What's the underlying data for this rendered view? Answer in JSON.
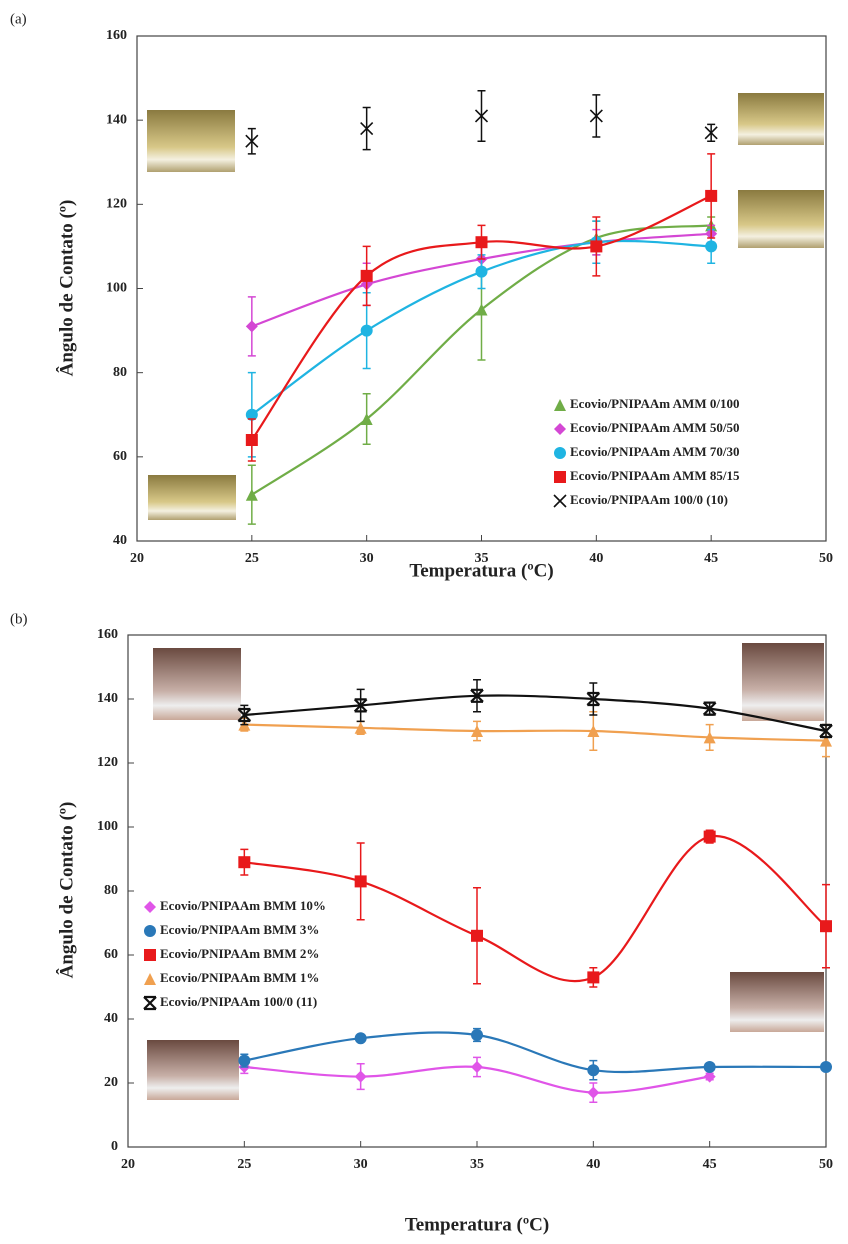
{
  "chart_data": [
    {
      "type": "line",
      "label": "(a)",
      "x_label": "Temperatura (ºC)",
      "y_label": "Ângulo de Contato (º)",
      "x": [
        25,
        30,
        35,
        40,
        45
      ],
      "xlim": [
        20,
        50
      ],
      "xticks": [
        20,
        25,
        30,
        35,
        40,
        45,
        50
      ],
      "ylim": [
        40,
        160
      ],
      "yticks": [
        40,
        60,
        80,
        100,
        120,
        140,
        160
      ],
      "series": [
        {
          "name": "Ecovio/PNIPAAm AMM 0/100",
          "color": "#70ad47",
          "marker": "triangle",
          "values": [
            51,
            69,
            95,
            112,
            115
          ],
          "errors": [
            7,
            6,
            12,
            4,
            2
          ]
        },
        {
          "name": "Ecovio/PNIPAAm AMM 50/50",
          "color": "#d447d4",
          "marker": "diamond",
          "values": [
            91,
            101,
            107,
            111,
            113
          ],
          "errors": [
            7,
            5,
            3,
            3,
            2
          ]
        },
        {
          "name": "Ecovio/PNIPAAm AMM 70/30",
          "color": "#1fb4e2",
          "marker": "circle",
          "values": [
            70,
            90,
            104,
            111,
            110
          ],
          "errors": [
            10,
            9,
            4,
            5,
            4
          ]
        },
        {
          "name": "Ecovio/PNIPAAm AMM 85/15",
          "color": "#e8191b",
          "marker": "square",
          "values": [
            64,
            103,
            111,
            110,
            122
          ],
          "errors": [
            5,
            7,
            4,
            7,
            10
          ]
        },
        {
          "name": "Ecovio/PNIPAAm 100/0 (10)",
          "color": "#111111",
          "marker": "x",
          "line": false,
          "values": [
            135,
            138,
            141,
            141,
            137
          ],
          "errors": [
            3,
            5,
            6,
            5,
            2
          ]
        }
      ]
    },
    {
      "type": "line",
      "label": "(b)",
      "x_label": "Temperatura (ºC)",
      "y_label": "Ângulo de Contato (º)",
      "x": [
        25,
        30,
        35,
        40,
        45,
        50
      ],
      "xlim": [
        20,
        50
      ],
      "xticks": [
        20,
        25,
        30,
        35,
        40,
        45,
        50
      ],
      "ylim": [
        0,
        160
      ],
      "yticks": [
        0,
        20,
        40,
        60,
        80,
        100,
        120,
        140,
        160
      ],
      "series": [
        {
          "name": "Ecovio/PNIPAAm BMM 10%",
          "color": "#e055e8",
          "marker": "diamond",
          "values": [
            25,
            22,
            25,
            17,
            22,
            null
          ],
          "errors": [
            2,
            4,
            3,
            3,
            1,
            null
          ]
        },
        {
          "name": "Ecovio/PNIPAAm BMM 3%",
          "color": "#2a78b8",
          "marker": "circle",
          "values": [
            27,
            34,
            35,
            24,
            25,
            25
          ],
          "errors": [
            2,
            1,
            2,
            3,
            1,
            1
          ]
        },
        {
          "name": "Ecovio/PNIPAAm BMM 2%",
          "color": "#e8191b",
          "marker": "square",
          "values": [
            89,
            83,
            66,
            53,
            97,
            69
          ],
          "errors": [
            4,
            12,
            15,
            3,
            2,
            13
          ]
        },
        {
          "name": "Ecovio/PNIPAAm BMM 1%",
          "color": "#f0a050",
          "marker": "triangle",
          "values": [
            132,
            131,
            130,
            130,
            128,
            127
          ],
          "errors": [
            2,
            2,
            3,
            6,
            4,
            5
          ]
        },
        {
          "name": "Ecovio/PNIPAAm 100/0 (11)",
          "color": "#111111",
          "marker": "star",
          "values": [
            135,
            138,
            141,
            140,
            137,
            130
          ],
          "errors": [
            3,
            5,
            5,
            5,
            2,
            2
          ]
        }
      ]
    }
  ]
}
